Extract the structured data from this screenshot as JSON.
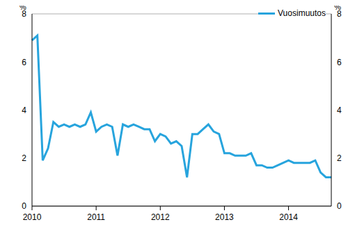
{
  "chart_data": {
    "type": "line",
    "ylabel": "%",
    "categories": [
      "2010",
      null,
      null,
      null,
      null,
      null,
      null,
      null,
      null,
      null,
      null,
      null,
      "2011",
      null,
      null,
      null,
      null,
      null,
      null,
      null,
      null,
      null,
      null,
      null,
      "2012",
      null,
      null,
      null,
      null,
      null,
      null,
      null,
      null,
      null,
      null,
      null,
      "2013",
      null,
      null,
      null,
      null,
      null,
      null,
      null,
      null,
      null,
      null,
      null,
      "2014",
      null,
      null,
      null,
      null,
      null,
      null,
      null,
      null
    ],
    "series": [
      {
        "name": "Vuosimuutos",
        "color": "#27a4dd",
        "values": [
          6.9,
          7.1,
          1.9,
          2.4,
          3.5,
          3.3,
          3.4,
          3.3,
          3.4,
          3.3,
          3.4,
          3.9,
          3.1,
          3.3,
          3.4,
          3.3,
          2.1,
          3.4,
          3.3,
          3.4,
          3.3,
          3.2,
          3.2,
          2.7,
          3.0,
          2.9,
          2.6,
          2.7,
          2.5,
          1.2,
          3.0,
          3.0,
          3.2,
          3.4,
          3.1,
          3.0,
          2.2,
          2.2,
          2.1,
          2.1,
          2.1,
          2.2,
          1.7,
          1.7,
          1.6,
          1.6,
          1.7,
          1.8,
          1.9,
          1.8,
          1.8,
          1.8,
          1.8,
          1.9,
          1.4,
          1.2,
          1.2
        ]
      }
    ],
    "ylim": [
      0,
      8
    ],
    "yticks": [
      0,
      2,
      4,
      6,
      8
    ],
    "grid": true,
    "legend": "upper right"
  }
}
